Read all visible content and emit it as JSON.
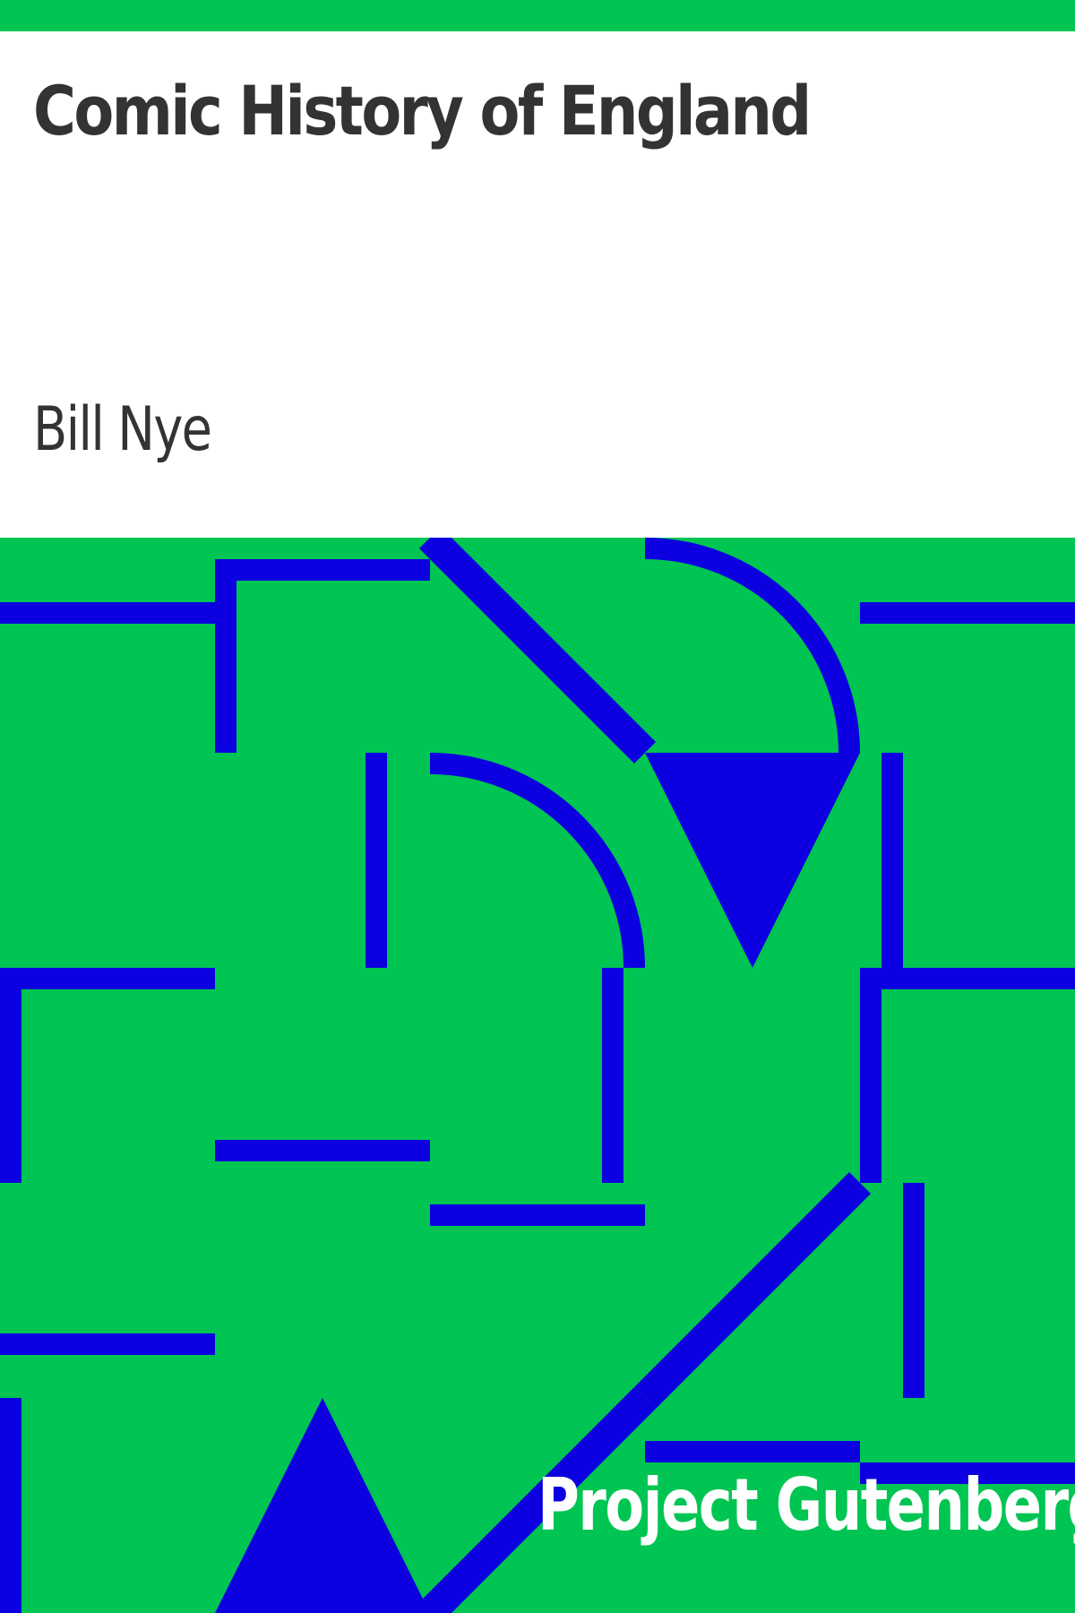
{
  "cover": {
    "title": "Comic History of England",
    "author": "Bill Nye",
    "publisher": "Project Gutenberg"
  },
  "colors": {
    "background": "#ffffff",
    "pattern_background": "#00c552",
    "pattern_stroke": "#0c00e0",
    "text_dark": "#333333",
    "text_light": "#ffffff"
  }
}
